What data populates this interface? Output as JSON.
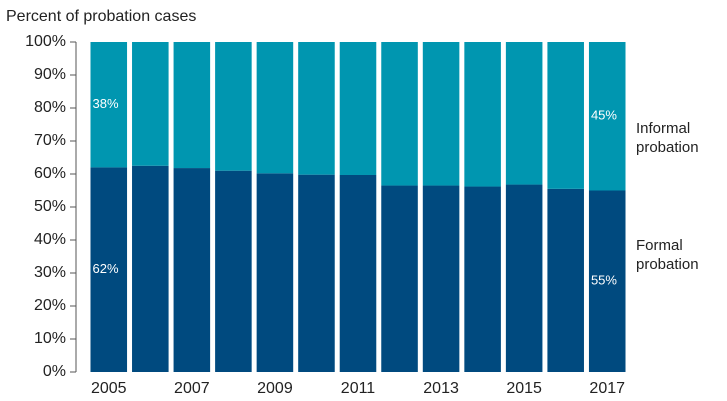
{
  "chart_data": {
    "type": "stacked_bar",
    "y_axis_label": "Percent of probation cases",
    "categories": [
      "2005",
      null,
      "2007",
      null,
      "2009",
      null,
      "2011",
      null,
      "2013",
      null,
      "2015",
      null,
      "2017"
    ],
    "series": [
      {
        "name": "Formal probation",
        "color": "#004a7f",
        "values": [
          62,
          62.5,
          61.8,
          61,
          60.2,
          59.8,
          59.7,
          56.5,
          56.5,
          56.2,
          56.8,
          55.5,
          55
        ],
        "value_labels": [
          "62%",
          null,
          null,
          null,
          null,
          null,
          null,
          null,
          null,
          null,
          null,
          null,
          "55%"
        ]
      },
      {
        "name": "Informal probation",
        "color": "#0096b0",
        "values": [
          38,
          37.5,
          38.2,
          39,
          39.8,
          40.2,
          40.3,
          43.5,
          43.5,
          43.8,
          43.2,
          44.5,
          45
        ],
        "value_labels": [
          "38%",
          null,
          null,
          null,
          null,
          null,
          null,
          null,
          null,
          null,
          null,
          null,
          "45%"
        ]
      }
    ],
    "ylim": [
      0,
      100
    ],
    "yticks": [
      {
        "value": 0,
        "label": "0%"
      },
      {
        "value": 10,
        "label": "10%"
      },
      {
        "value": 20,
        "label": "20%"
      },
      {
        "value": 30,
        "label": "30%"
      },
      {
        "value": 40,
        "label": "40%"
      },
      {
        "value": 50,
        "label": "50%"
      },
      {
        "value": 60,
        "label": "60%"
      },
      {
        "value": 70,
        "label": "70%"
      },
      {
        "value": 80,
        "label": "80%"
      },
      {
        "value": 90,
        "label": "90%"
      },
      {
        "value": 100,
        "label": "100%"
      }
    ]
  }
}
